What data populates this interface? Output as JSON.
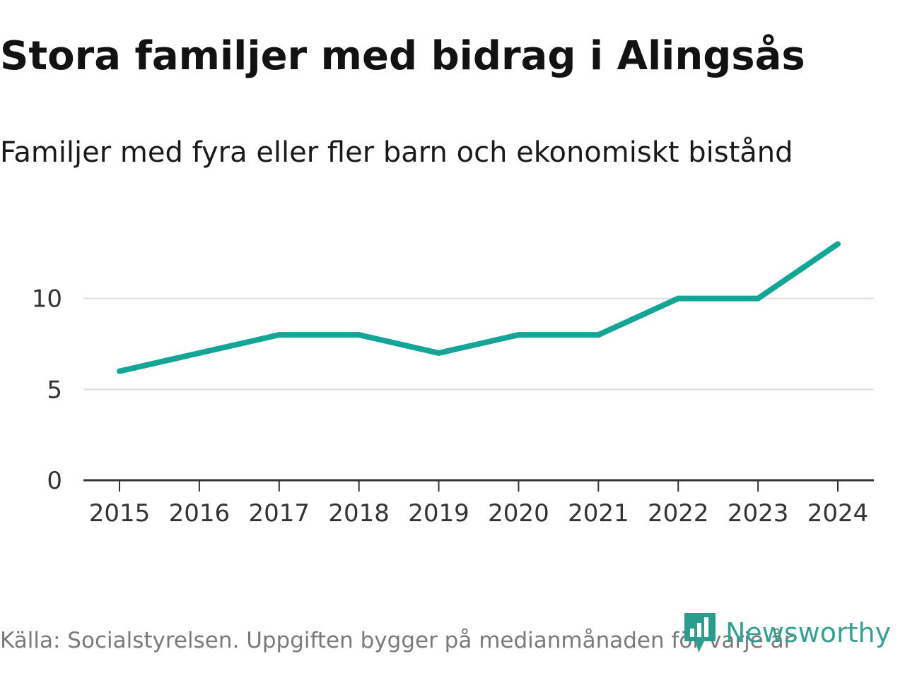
{
  "chart_data": {
    "type": "line",
    "title": "Stora familjer med bidrag i Alingsås",
    "subtitle": "Familjer med fyra eller fler barn och ekonomiskt bistånd",
    "x": [
      "2015",
      "2016",
      "2017",
      "2018",
      "2019",
      "2020",
      "2021",
      "2022",
      "2023",
      "2024"
    ],
    "series": [
      {
        "name": "Familjer",
        "values": [
          6,
          7,
          8,
          8,
          7,
          8,
          8,
          10,
          10,
          13
        ]
      }
    ],
    "ylim": [
      0,
      15
    ],
    "yticks": [
      0,
      5,
      10
    ],
    "ytick_labels": [
      "0",
      "5",
      "10"
    ],
    "xlabel": "",
    "ylabel": "",
    "grid": true,
    "line_color": "#13a596",
    "source": "Källa: Socialstyrelsen. Uppgiften bygger på medianmånaden för varje år"
  },
  "brand": {
    "name": "Newsworthy",
    "icon": "newsworthy-logo-icon",
    "color": "#2a9d8f"
  }
}
